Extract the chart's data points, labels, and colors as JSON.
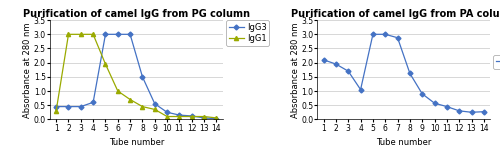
{
  "pg_title": "Purification of camel IgG from PG column",
  "pa_title": "Purification of camel IgG from PA column",
  "xlabel": "Tube number",
  "ylabel": "Absorbance at 280 nm",
  "x": [
    1,
    2,
    3,
    4,
    5,
    6,
    7,
    8,
    9,
    10,
    11,
    12,
    13,
    14
  ],
  "pg_IgG3": [
    0.45,
    0.45,
    0.45,
    0.6,
    3.0,
    3.0,
    3.0,
    1.5,
    0.55,
    0.25,
    0.15,
    0.12,
    0.05,
    0.02
  ],
  "pg_IgG1": [
    0.3,
    3.0,
    3.0,
    3.0,
    1.95,
    1.0,
    0.7,
    0.45,
    0.35,
    0.1,
    0.1,
    0.1,
    0.1,
    0.05
  ],
  "pa_IgG2": [
    2.1,
    1.95,
    1.7,
    1.05,
    3.0,
    3.0,
    2.88,
    1.62,
    0.9,
    0.57,
    0.45,
    0.3,
    0.25,
    0.27
  ],
  "igG3_color": "#4472c4",
  "igG1_color": "#9aaa00",
  "igG2_color": "#4472c4",
  "ylim": [
    0,
    3.5
  ],
  "yticks": [
    0,
    0.5,
    1.0,
    1.5,
    2.0,
    2.5,
    3.0,
    3.5
  ],
  "xticks": [
    1,
    2,
    3,
    4,
    5,
    6,
    7,
    8,
    9,
    10,
    11,
    12,
    13,
    14
  ],
  "title_fontsize": 7.0,
  "label_fontsize": 6.0,
  "tick_fontsize": 5.5,
  "legend_fontsize": 6.0,
  "bg_color": "#ffffff"
}
